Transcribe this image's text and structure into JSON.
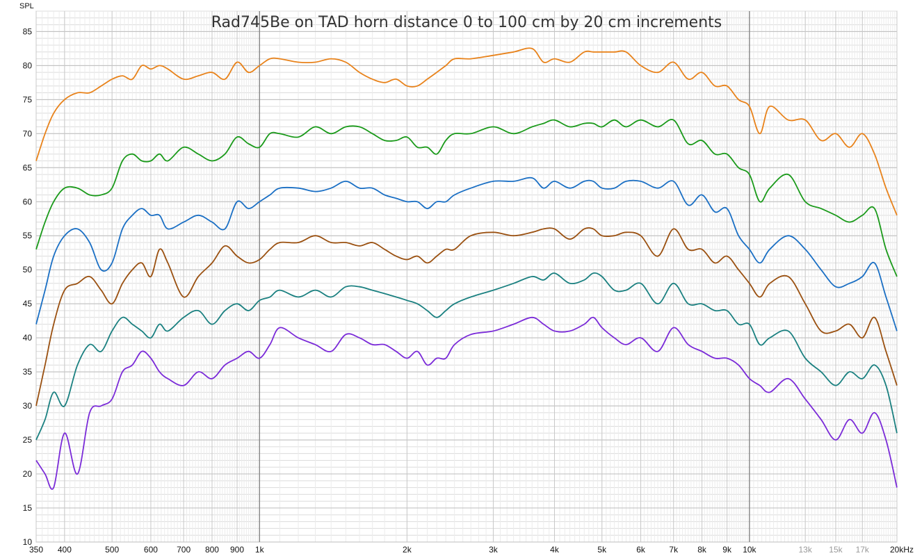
{
  "chart_data": {
    "type": "line",
    "title": "Rad745Be on TAD horn distance 0 to 100 cm by 20 cm increments",
    "ylabel": "SPL",
    "xlabel": "",
    "x_scale": "log",
    "xlim": [
      350,
      20000
    ],
    "ylim": [
      10,
      88
    ],
    "grid": true,
    "y_ticks": [
      10,
      15,
      20,
      25,
      30,
      35,
      40,
      45,
      50,
      55,
      60,
      65,
      70,
      75,
      80,
      85
    ],
    "x_ticks": [
      {
        "value": 350,
        "label": "350",
        "minor": false
      },
      {
        "value": 400,
        "label": "400",
        "minor": false
      },
      {
        "value": 500,
        "label": "500",
        "minor": false
      },
      {
        "value": 600,
        "label": "600",
        "minor": false
      },
      {
        "value": 700,
        "label": "700",
        "minor": false
      },
      {
        "value": 800,
        "label": "800",
        "minor": false
      },
      {
        "value": 900,
        "label": "900",
        "minor": false
      },
      {
        "value": 1000,
        "label": "1k",
        "minor": false
      },
      {
        "value": 2000,
        "label": "2k",
        "minor": false
      },
      {
        "value": 3000,
        "label": "3k",
        "minor": false
      },
      {
        "value": 4000,
        "label": "4k",
        "minor": false
      },
      {
        "value": 5000,
        "label": "5k",
        "minor": false
      },
      {
        "value": 6000,
        "label": "6k",
        "minor": false
      },
      {
        "value": 7000,
        "label": "7k",
        "minor": false
      },
      {
        "value": 8000,
        "label": "8k",
        "minor": false
      },
      {
        "value": 9000,
        "label": "9k",
        "minor": false
      },
      {
        "value": 10000,
        "label": "10k",
        "minor": false
      },
      {
        "value": 13000,
        "label": "13k",
        "minor": true
      },
      {
        "value": 15000,
        "label": "15k",
        "minor": true
      },
      {
        "value": 17000,
        "label": "17k",
        "minor": true
      },
      {
        "value": 20000,
        "label": "20kHz",
        "minor": false
      }
    ],
    "series": [
      {
        "color": "#e8821a",
        "x": [
          350,
          365,
          380,
          400,
          425,
          450,
          475,
          500,
          525,
          550,
          575,
          600,
          625,
          650,
          700,
          750,
          800,
          850,
          900,
          950,
          1000,
          1050,
          1100,
          1200,
          1300,
          1400,
          1500,
          1600,
          1700,
          1800,
          1900,
          2000,
          2100,
          2200,
          2300,
          2400,
          2500,
          2700,
          3000,
          3300,
          3600,
          3800,
          4000,
          4300,
          4600,
          4800,
          5000,
          5300,
          5600,
          6000,
          6500,
          7000,
          7500,
          8000,
          8500,
          9000,
          9500,
          10000,
          10500,
          11000,
          12000,
          13000,
          14000,
          15000,
          16000,
          17000,
          18000,
          19000,
          20000
        ],
        "y": [
          66,
          70,
          73,
          75,
          76,
          76,
          77,
          78,
          78.5,
          78,
          80,
          79.5,
          80,
          79.5,
          78,
          78.5,
          79,
          78,
          80.5,
          79,
          80,
          81,
          81,
          80.5,
          80.5,
          81,
          80.5,
          79,
          78,
          77.5,
          78,
          77,
          77,
          78,
          79,
          80,
          81,
          81,
          81.5,
          82,
          82.5,
          80.5,
          81,
          80.5,
          82,
          82,
          82,
          82,
          82,
          80,
          79,
          80.5,
          78,
          79,
          77,
          77,
          75,
          74,
          70,
          74,
          72,
          72,
          69,
          70,
          68,
          70,
          67,
          62,
          58
        ]
      },
      {
        "color": "#1a9a1a",
        "x": [
          350,
          365,
          380,
          400,
          425,
          450,
          475,
          500,
          525,
          550,
          575,
          600,
          625,
          650,
          700,
          750,
          800,
          850,
          900,
          950,
          1000,
          1050,
          1100,
          1200,
          1300,
          1400,
          1500,
          1600,
          1700,
          1800,
          1900,
          2000,
          2100,
          2200,
          2300,
          2400,
          2500,
          2700,
          3000,
          3300,
          3600,
          3800,
          4000,
          4300,
          4600,
          4800,
          5000,
          5300,
          5600,
          6000,
          6500,
          7000,
          7500,
          8000,
          8500,
          9000,
          9500,
          10000,
          10500,
          11000,
          12000,
          13000,
          14000,
          15000,
          16000,
          17000,
          18000,
          19000,
          20000
        ],
        "y": [
          53,
          57,
          60,
          62,
          62,
          61,
          61,
          62,
          66,
          67,
          66,
          66,
          67,
          66,
          68,
          67,
          66,
          67,
          69.5,
          68.5,
          68,
          70,
          70,
          69.5,
          71,
          70,
          71,
          71,
          70,
          69,
          69,
          69.5,
          68,
          68,
          67,
          69,
          70,
          70,
          71,
          70,
          71,
          71.5,
          72,
          71,
          71.5,
          71.5,
          71,
          72,
          71,
          72,
          71,
          72,
          68.5,
          69,
          67,
          67,
          65,
          64,
          60,
          62,
          64,
          60,
          59,
          58,
          57,
          58,
          59,
          53,
          49
        ]
      },
      {
        "color": "#1a6fc4",
        "x": [
          350,
          365,
          380,
          400,
          425,
          450,
          475,
          500,
          525,
          550,
          575,
          600,
          625,
          650,
          700,
          750,
          800,
          850,
          900,
          950,
          1000,
          1050,
          1100,
          1200,
          1300,
          1400,
          1500,
          1600,
          1700,
          1800,
          1900,
          2000,
          2100,
          2200,
          2300,
          2400,
          2500,
          2700,
          3000,
          3300,
          3600,
          3800,
          4000,
          4300,
          4600,
          4800,
          5000,
          5300,
          5600,
          6000,
          6500,
          7000,
          7500,
          8000,
          8500,
          9000,
          9500,
          10000,
          10500,
          11000,
          12000,
          13000,
          14000,
          15000,
          16000,
          17000,
          18000,
          19000,
          20000
        ],
        "y": [
          42,
          47,
          52,
          55,
          56,
          54,
          50,
          51,
          56,
          58,
          59,
          58,
          58,
          56,
          57,
          58,
          57,
          56,
          60,
          59,
          60,
          61,
          62,
          62,
          61.5,
          62,
          63,
          62,
          62,
          61,
          60.5,
          60,
          60,
          59,
          60,
          60,
          61,
          62,
          63,
          63,
          63.5,
          62,
          63,
          62,
          63,
          63,
          62,
          62,
          63,
          63,
          62,
          63,
          59.5,
          61,
          58.5,
          59,
          55,
          53,
          51,
          53,
          55,
          53,
          50,
          47.5,
          48,
          49,
          51,
          46,
          41
        ]
      },
      {
        "color": "#9a5010",
        "x": [
          350,
          365,
          380,
          400,
          425,
          450,
          475,
          500,
          525,
          550,
          575,
          600,
          625,
          650,
          700,
          750,
          800,
          850,
          900,
          950,
          1000,
          1050,
          1100,
          1200,
          1300,
          1400,
          1500,
          1600,
          1700,
          1800,
          1900,
          2000,
          2100,
          2200,
          2300,
          2400,
          2500,
          2700,
          3000,
          3300,
          3600,
          3800,
          4000,
          4300,
          4600,
          4800,
          5000,
          5300,
          5600,
          6000,
          6500,
          7000,
          7500,
          8000,
          8500,
          9000,
          9500,
          10000,
          10500,
          11000,
          12000,
          13000,
          14000,
          15000,
          16000,
          17000,
          18000,
          19000,
          20000
        ],
        "y": [
          30,
          36,
          42,
          47,
          48,
          49,
          47,
          45,
          48,
          50,
          51,
          49,
          53,
          51,
          46,
          49,
          51,
          53.5,
          52,
          51,
          51.5,
          53,
          54,
          54,
          55,
          54,
          54,
          53.5,
          54,
          53,
          52,
          51.5,
          52,
          51,
          52,
          53,
          53,
          55,
          55.5,
          55,
          55.5,
          56,
          56,
          54.5,
          56,
          56,
          55,
          55,
          55.5,
          55,
          52,
          56,
          53,
          53,
          51,
          52,
          50,
          48,
          46,
          48,
          49,
          45,
          41,
          41,
          42,
          40,
          43,
          38,
          33
        ]
      },
      {
        "color": "#1a8080",
        "x": [
          350,
          365,
          380,
          400,
          425,
          450,
          475,
          500,
          525,
          550,
          575,
          600,
          625,
          650,
          700,
          750,
          800,
          850,
          900,
          950,
          1000,
          1050,
          1100,
          1200,
          1300,
          1400,
          1500,
          1600,
          1700,
          1800,
          1900,
          2000,
          2100,
          2200,
          2300,
          2400,
          2500,
          2700,
          3000,
          3300,
          3600,
          3800,
          4000,
          4300,
          4600,
          4800,
          5000,
          5300,
          5600,
          6000,
          6500,
          7000,
          7500,
          8000,
          8500,
          9000,
          9500,
          10000,
          10500,
          11000,
          12000,
          13000,
          14000,
          15000,
          16000,
          17000,
          18000,
          19000,
          20000
        ],
        "y": [
          25,
          28,
          32,
          30,
          36,
          39,
          38,
          41,
          43,
          42,
          41,
          40,
          42,
          41,
          43,
          44,
          42,
          44,
          45,
          44,
          45.5,
          46,
          47,
          46,
          47,
          46,
          47.5,
          47.5,
          47,
          46.5,
          46,
          45.5,
          45,
          44,
          43,
          44,
          45,
          46,
          47,
          48,
          49,
          48.5,
          49.5,
          48,
          48.5,
          49.5,
          49,
          47,
          47,
          48,
          45,
          48,
          45,
          45,
          44,
          44,
          42,
          42,
          39,
          40,
          41,
          37,
          35,
          33,
          35,
          34,
          36,
          33,
          26
        ]
      },
      {
        "color": "#7a2ad8",
        "x": [
          350,
          365,
          380,
          400,
          425,
          450,
          475,
          500,
          525,
          550,
          575,
          600,
          625,
          650,
          700,
          750,
          800,
          850,
          900,
          950,
          1000,
          1050,
          1100,
          1200,
          1300,
          1400,
          1500,
          1600,
          1700,
          1800,
          1900,
          2000,
          2100,
          2200,
          2300,
          2400,
          2500,
          2700,
          3000,
          3300,
          3600,
          3800,
          4000,
          4300,
          4600,
          4800,
          5000,
          5300,
          5600,
          6000,
          6500,
          7000,
          7500,
          8000,
          8500,
          9000,
          9500,
          10000,
          10500,
          11000,
          12000,
          13000,
          14000,
          15000,
          16000,
          17000,
          18000,
          19000,
          20000
        ],
        "y": [
          22,
          20,
          18,
          26,
          20,
          29,
          30,
          31,
          35,
          36,
          38,
          37,
          35,
          34,
          33,
          35,
          34,
          36,
          37,
          38,
          37,
          39,
          41.5,
          40,
          39,
          38,
          40.5,
          40,
          39,
          39,
          38,
          37,
          38,
          36,
          37,
          37,
          39,
          40.5,
          41,
          42,
          43,
          42,
          41,
          41,
          42,
          43,
          41.5,
          40,
          39,
          40,
          38,
          41.5,
          39,
          38,
          37,
          37,
          36,
          34,
          33,
          32,
          34,
          31,
          28,
          25,
          28,
          26,
          29,
          25,
          18
        ]
      }
    ]
  }
}
